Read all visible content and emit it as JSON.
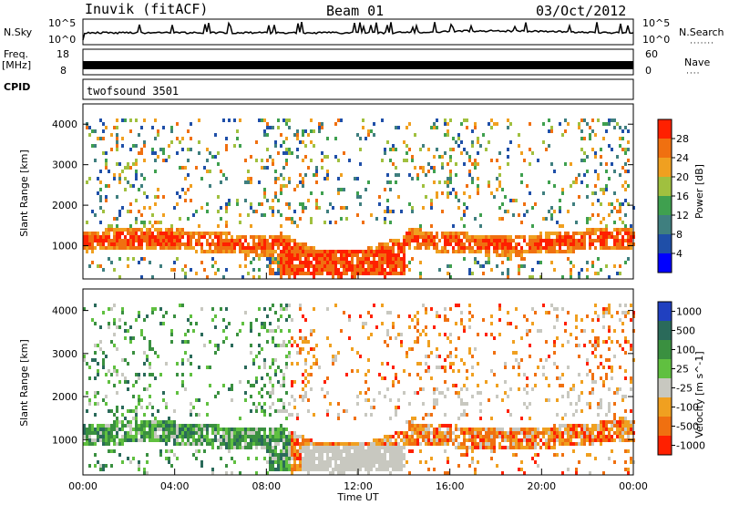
{
  "header": {
    "station": "Inuvik (fitACF)",
    "beam": "Beam 01",
    "date": "03/Oct/2012"
  },
  "strip_panels": {
    "nsky": {
      "label": "N.Sky",
      "ticks": [
        "10^5",
        "10^0"
      ]
    },
    "nsearch": {
      "label": "N.Search",
      "ticks": [
        "10^5",
        "10^0"
      ]
    },
    "freq": {
      "label_line1": "Freq.",
      "label_line2": "[MHz]",
      "ticks": [
        "18",
        "8"
      ]
    },
    "nave": {
      "label": "Nave",
      "ticks": [
        "60",
        "0"
      ]
    },
    "cpid": {
      "label": "CPID",
      "program": "twofsound 3501"
    }
  },
  "chart_data": [
    {
      "type": "heatmap",
      "title": "",
      "xlabel": "",
      "ylabel": "Slant Range [km]",
      "x_ticks": [
        "00:00",
        "04:00",
        "08:00",
        "12:00",
        "16:00",
        "20:00",
        "00:00"
      ],
      "x_range_hours": [
        0,
        24
      ],
      "y_ticks": [
        1000,
        2000,
        3000,
        4000
      ],
      "y_range_km": [
        180,
        4500
      ],
      "colorbar": {
        "label": "Power [dB]",
        "ticks": [
          "28",
          "24",
          "20",
          "16",
          "12",
          "8",
          "4"
        ],
        "range": [
          0,
          30
        ],
        "colors": [
          "#0000ff",
          "#1f4fa8",
          "#3f7f7f",
          "#3fa04f",
          "#a0c03f",
          "#f0a020",
          "#f07010",
          "#ff2000"
        ]
      },
      "features": [
        {
          "name": "main echo band",
          "range_km": [
            800,
            1300
          ],
          "hours": [
            0,
            24
          ],
          "power_db": 28
        },
        {
          "name": "low-range descent",
          "range_km": [
            300,
            900
          ],
          "hours": [
            8.5,
            14
          ],
          "power_db": 30
        },
        {
          "name": "far-range scatter",
          "range_km": [
            1500,
            4000
          ],
          "hours": [
            0,
            24
          ],
          "power_db": 12
        }
      ]
    },
    {
      "type": "heatmap",
      "title": "",
      "xlabel": "Time UT",
      "ylabel": "Slant Range [km]",
      "x_ticks": [
        "00:00",
        "04:00",
        "08:00",
        "12:00",
        "16:00",
        "20:00",
        "00:00"
      ],
      "x_range_hours": [
        0,
        24
      ],
      "y_ticks": [
        1000,
        2000,
        3000,
        4000
      ],
      "y_range_km": [
        180,
        4500
      ],
      "colorbar": {
        "label": "Velocity [m s^-1]",
        "ticks": [
          "1000",
          "500",
          "100",
          "25",
          "-25",
          "-100",
          "-500",
          "-1000"
        ],
        "colors": [
          "#2040c0",
          "#2a6a5a",
          "#3a9040",
          "#60c040",
          "#c8c8c0",
          "#f0a020",
          "#f07010",
          "#ff2000"
        ]
      },
      "features": [
        {
          "name": "positive velocity band",
          "range_km": [
            700,
            1500
          ],
          "hours": [
            0,
            9
          ],
          "velocity": 100
        },
        {
          "name": "ground scatter (near zero)",
          "range_km": [
            300,
            700
          ],
          "hours": [
            9.5,
            14
          ],
          "velocity": 0
        },
        {
          "name": "negative velocity band",
          "range_km": [
            700,
            1400
          ],
          "hours": [
            13,
            24
          ],
          "velocity": -100
        },
        {
          "name": "ground scatter band",
          "range_km": [
            1500,
            2200
          ],
          "hours": [
            8,
            24
          ],
          "velocity": 0
        }
      ]
    }
  ]
}
